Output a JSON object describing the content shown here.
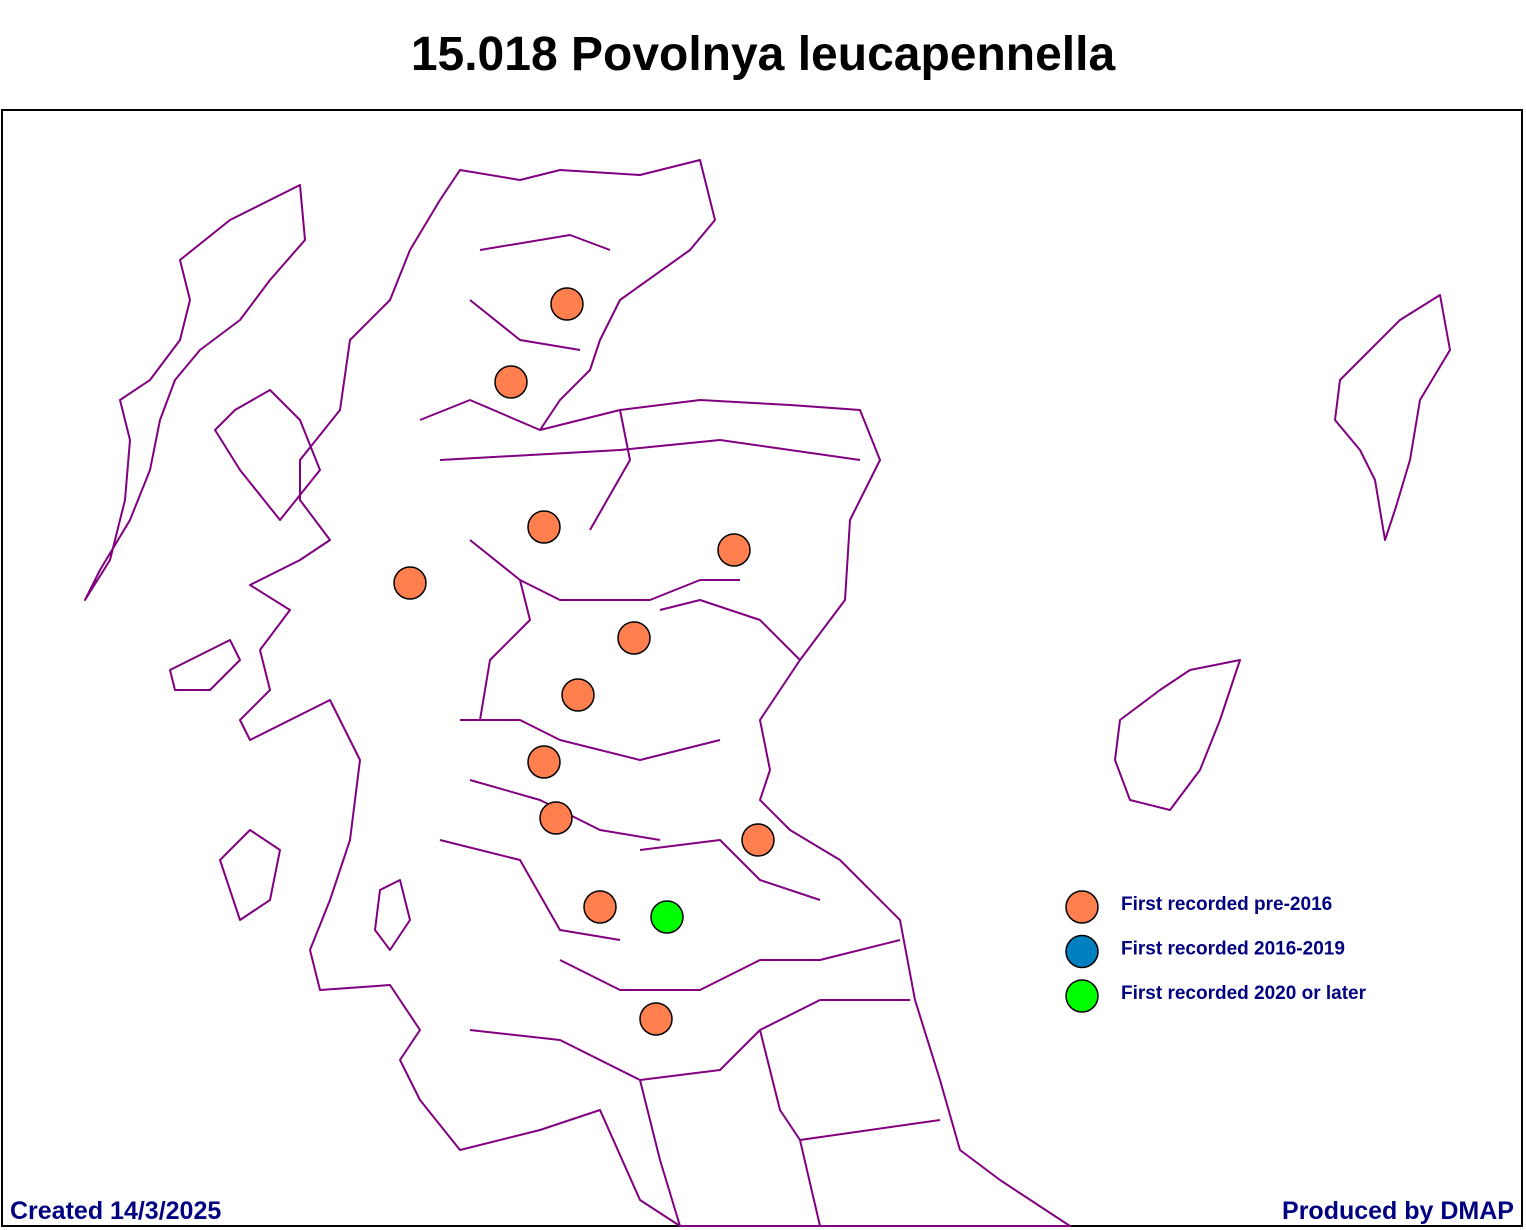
{
  "title": "15.018 Povolnya leucapennella",
  "legend": [
    {
      "label": "First recorded pre-2016",
      "color": "#ff7f4f"
    },
    {
      "label": "First recorded 2016-2019",
      "color": "#0080c0"
    },
    {
      "label": "First recorded 2020 or later",
      "color": "#00ff00"
    }
  ],
  "footer": {
    "left": "Created 14/3/2025",
    "right": "Produced by DMAP"
  }
}
